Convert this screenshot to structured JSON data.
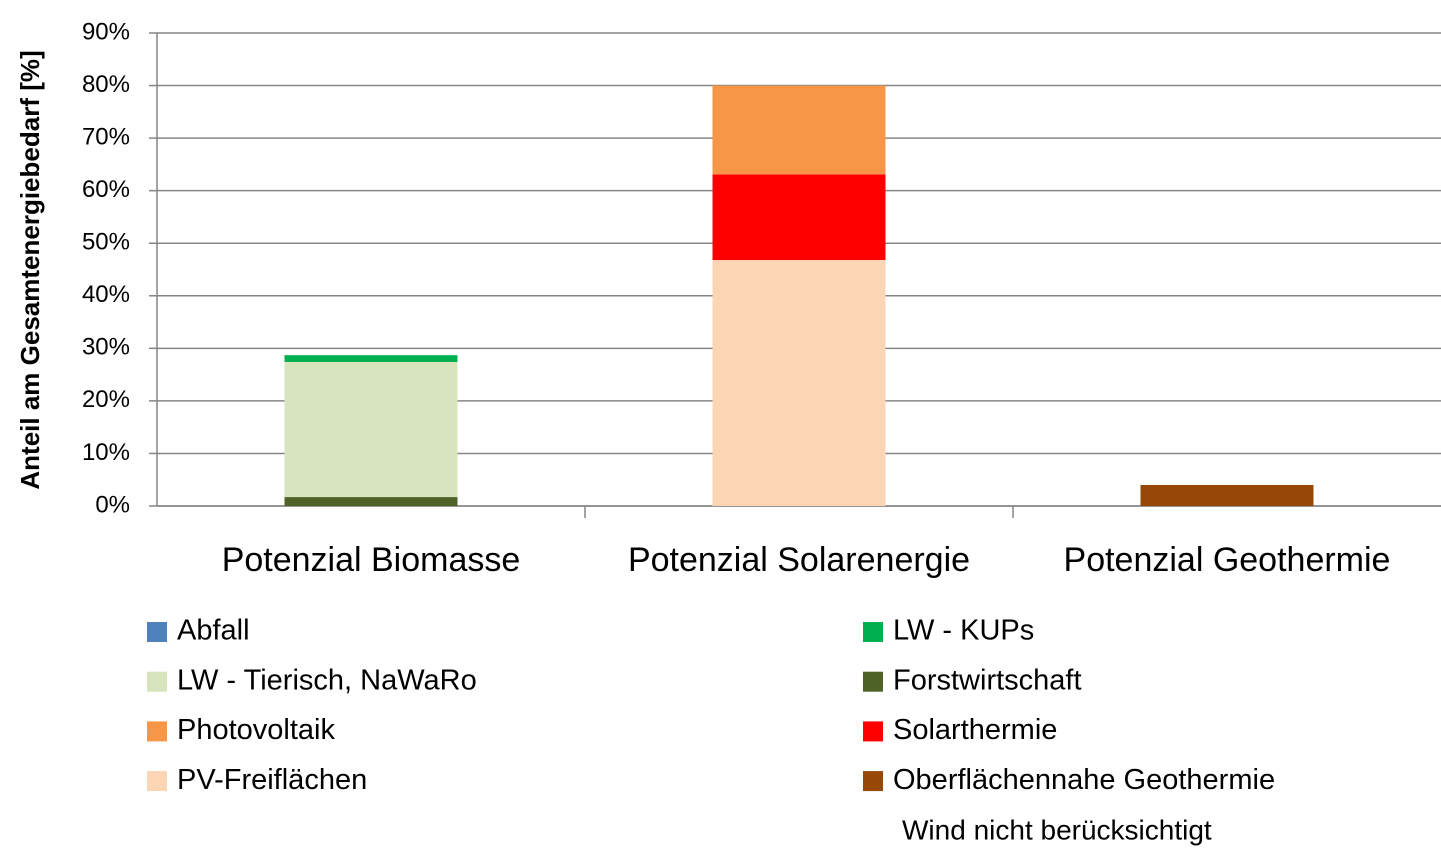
{
  "chart_data": {
    "type": "stacked_bar",
    "y_label": "Anteil am Gesamtenergiebedarf [%]",
    "categories": [
      "Potenzial Biomasse",
      "Potenzial Solarenergie",
      "Potenzial Geothermie"
    ],
    "series": [
      {
        "name": "Abfall",
        "color": "#4f81bd",
        "values": [
          0,
          0,
          0
        ]
      },
      {
        "name": "LW - KUPs",
        "color": "#00b050",
        "values": [
          1.3,
          0,
          0
        ]
      },
      {
        "name": "LW - Tierisch, NaWaRo",
        "color": "#d7e4bd",
        "values": [
          25.7,
          0,
          0
        ]
      },
      {
        "name": "Forstwirtschaft",
        "color": "#4f6228",
        "values": [
          1.7,
          0,
          0
        ]
      },
      {
        "name": "Photovoltaik",
        "color": "#f79646",
        "values": [
          0,
          16.9,
          0
        ]
      },
      {
        "name": "Solarthermie",
        "color": "#ff0000",
        "values": [
          0,
          16.3,
          0
        ]
      },
      {
        "name": "PV-Freiflächen",
        "color": "#fcd5b5",
        "values": [
          0,
          46.8,
          0
        ]
      },
      {
        "name": "Oberflächennahe Geothermie",
        "color": "#974806",
        "values": [
          0,
          0,
          4.0
        ]
      }
    ],
    "ylim": [
      0,
      90
    ],
    "yticks": [
      {
        "value": 0,
        "label": "0%"
      },
      {
        "value": 10,
        "label": "10%"
      },
      {
        "value": 20,
        "label": "20%"
      },
      {
        "value": 30,
        "label": "30%"
      },
      {
        "value": 40,
        "label": "40%"
      },
      {
        "value": 50,
        "label": "50%"
      },
      {
        "value": 60,
        "label": "60%"
      },
      {
        "value": 70,
        "label": "70%"
      },
      {
        "value": 80,
        "label": "80%"
      },
      {
        "value": 90,
        "label": "90%"
      }
    ],
    "grid": true,
    "legend": "bottom",
    "annotation": "Wind nicht berücksichtigt"
  }
}
